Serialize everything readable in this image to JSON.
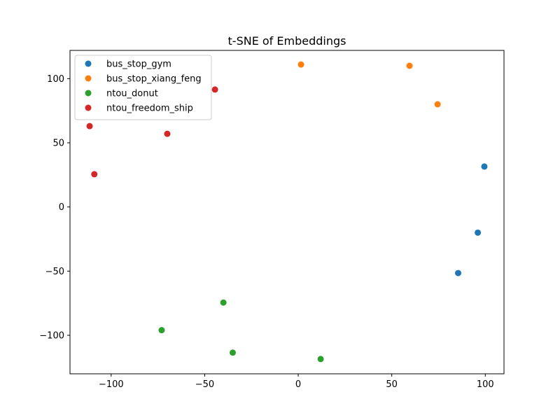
{
  "chart_data": {
    "type": "scatter",
    "title": "t-SNE of Embeddings",
    "xlabel": "",
    "ylabel": "",
    "xlim": [
      -122,
      110
    ],
    "ylim": [
      -130,
      122
    ],
    "xticks": [
      -100,
      -50,
      0,
      50,
      100
    ],
    "yticks": [
      -100,
      -50,
      0,
      50,
      100
    ],
    "xtick_labels": [
      "−100",
      "−50",
      "0",
      "50",
      "100"
    ],
    "ytick_labels": [
      "−100",
      "−50",
      "0",
      "50",
      "100"
    ],
    "grid": false,
    "legend_position": "top-left",
    "series": [
      {
        "name": "bus_stop_gym",
        "color": "#1f77b4",
        "points": [
          [
            99.5,
            31.5
          ],
          [
            96,
            -20
          ],
          [
            85.5,
            -51.5
          ]
        ]
      },
      {
        "name": "bus_stop_xiang_feng",
        "color": "#ff7f0e",
        "points": [
          [
            1.5,
            111
          ],
          [
            59.5,
            110
          ],
          [
            74.5,
            80
          ]
        ]
      },
      {
        "name": "ntou_donut",
        "color": "#2ca02c",
        "points": [
          [
            -40,
            -74.5
          ],
          [
            -73,
            -96
          ],
          [
            -35,
            -113.5
          ],
          [
            12,
            -118.5
          ]
        ]
      },
      {
        "name": "ntou_freedom_ship",
        "color": "#d62728",
        "points": [
          [
            -44.5,
            91.5
          ],
          [
            -111.5,
            63
          ],
          [
            -70,
            57
          ],
          [
            -109,
            25.5
          ]
        ]
      }
    ]
  }
}
